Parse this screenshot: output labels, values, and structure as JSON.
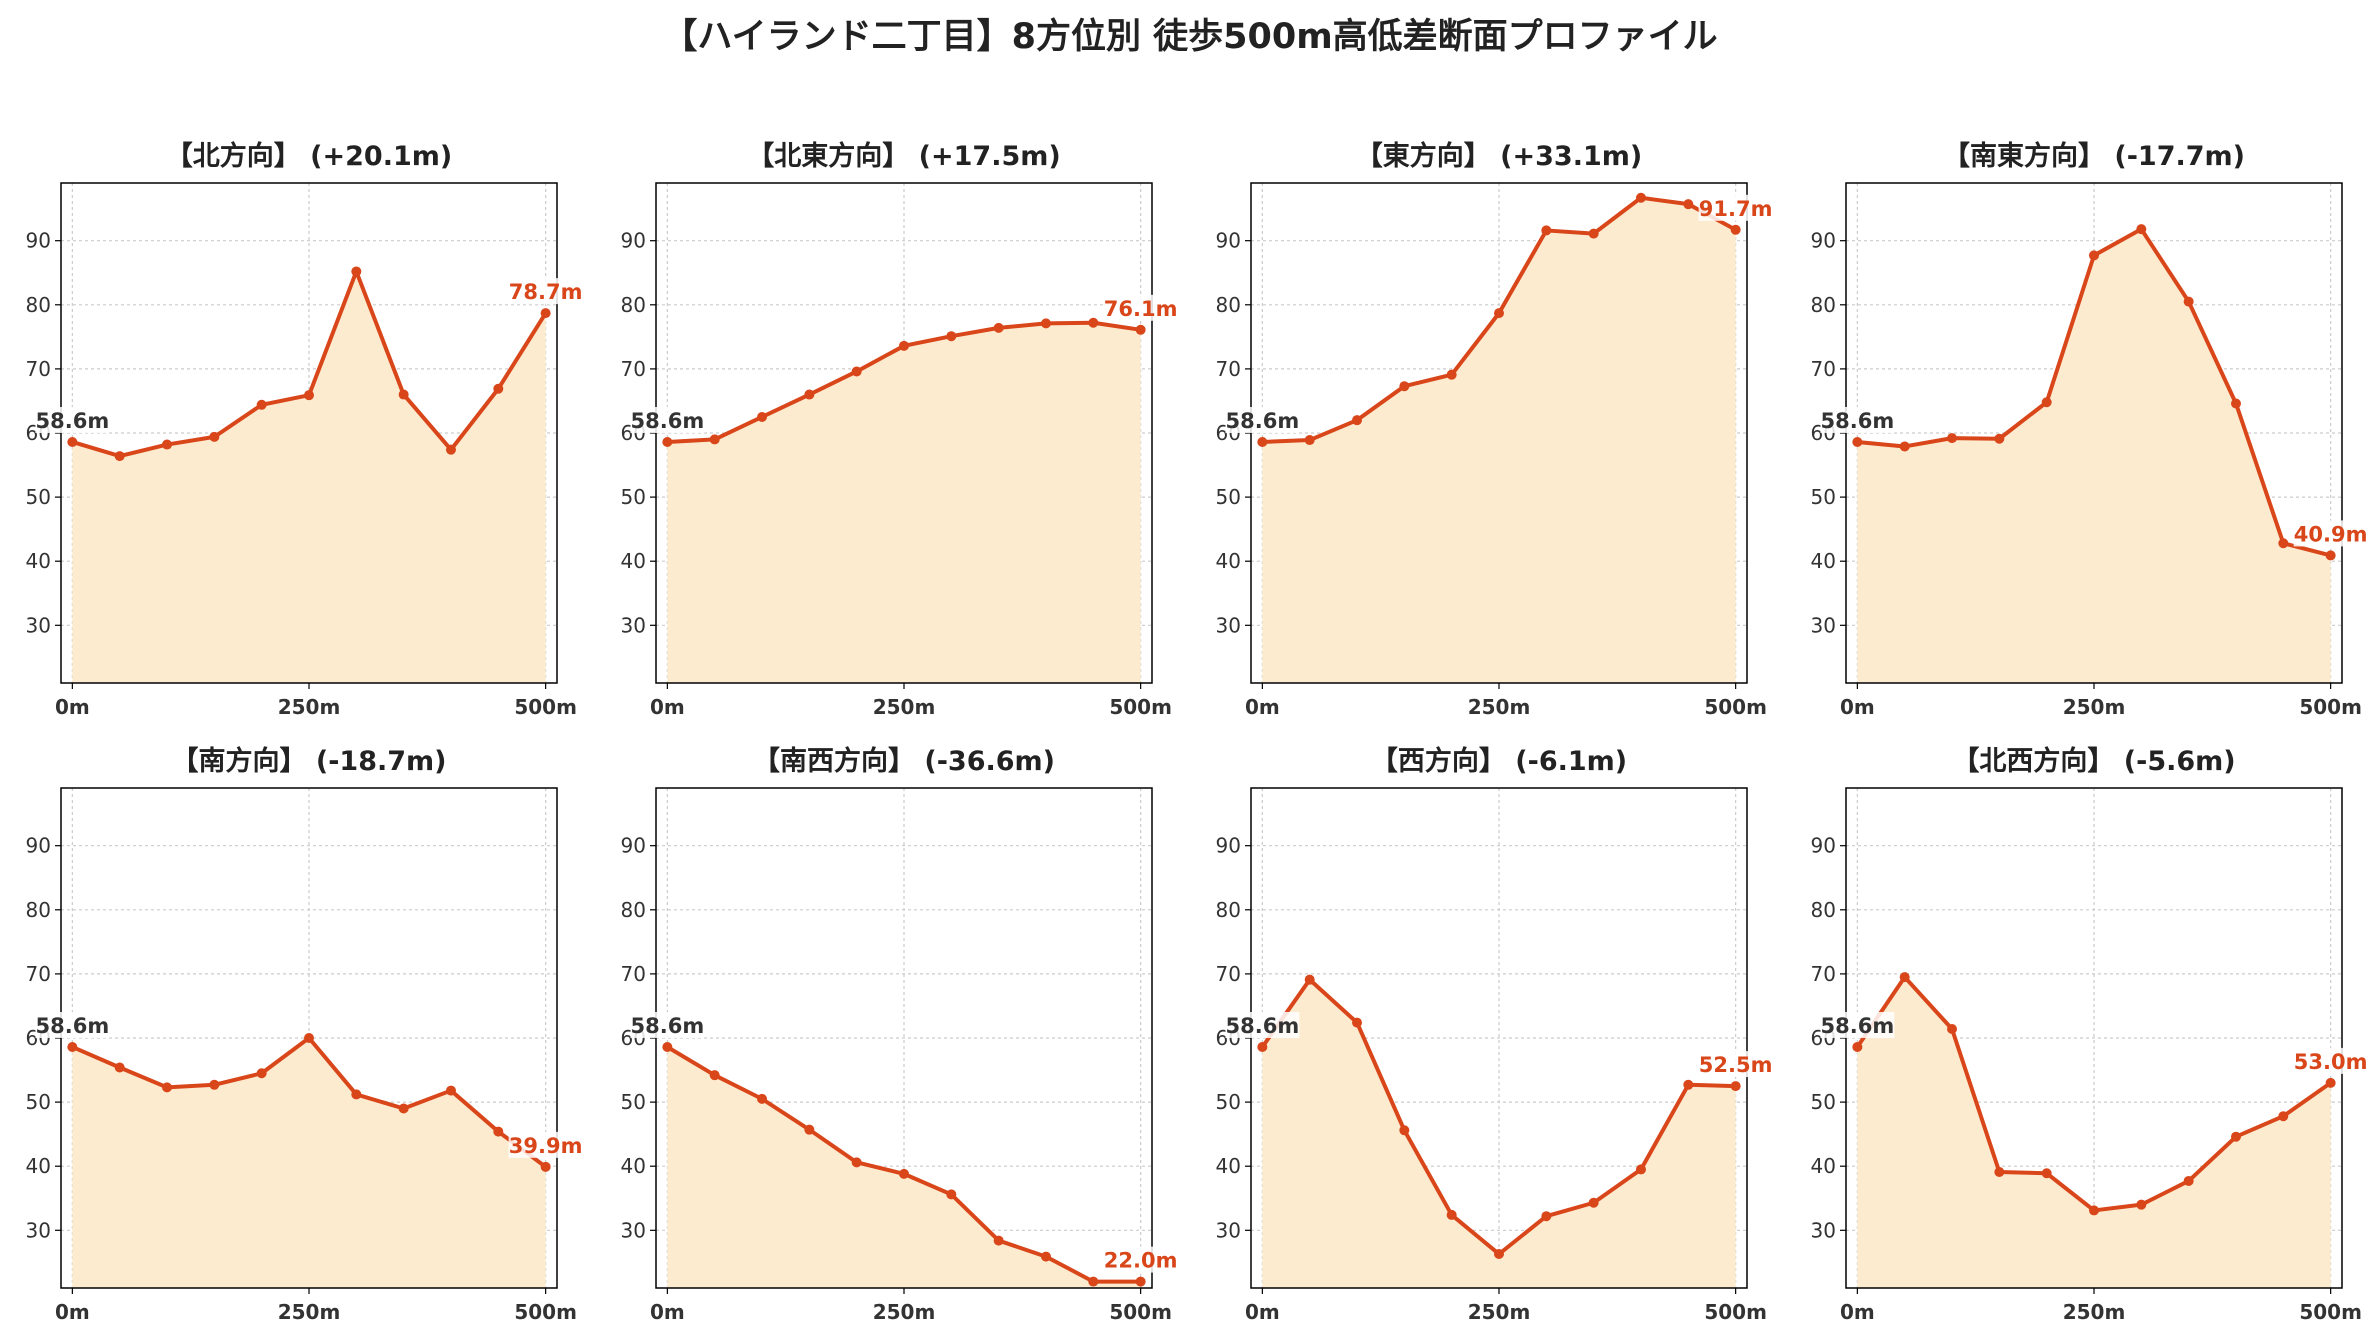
{
  "title": "【ハイランド二丁目】8方位別 徒歩500m高低差断面プロファイル",
  "colors": {
    "line": "#d9461a",
    "fill": "#fdebd0",
    "start_label": "#333333",
    "end_label": "#d9461a",
    "grid": "#cccccc"
  },
  "chart_data": [
    {
      "type": "area",
      "title": "【北方向】 (+20.1m)",
      "start_label": "58.6m",
      "end_label": "78.7m",
      "x": [
        0,
        50,
        100,
        150,
        200,
        250,
        300,
        350,
        400,
        450,
        500
      ],
      "y": [
        58.6,
        56.4,
        58.2,
        59.4,
        64.4,
        65.9,
        85.2,
        66.0,
        57.4,
        66.9,
        78.7
      ],
      "xticks": [
        "0m",
        "250m",
        "500m"
      ],
      "yticks": [
        30,
        40,
        50,
        60,
        70,
        80,
        90
      ],
      "ylim": [
        21,
        99
      ],
      "xlim": [
        -12,
        512
      ],
      "grid": true
    },
    {
      "type": "area",
      "title": "【北東方向】 (+17.5m)",
      "start_label": "58.6m",
      "end_label": "76.1m",
      "x": [
        0,
        50,
        100,
        150,
        200,
        250,
        300,
        350,
        400,
        450,
        500
      ],
      "y": [
        58.6,
        59.0,
        62.5,
        66.0,
        69.6,
        73.6,
        75.1,
        76.4,
        77.1,
        77.2,
        76.1
      ],
      "xticks": [
        "0m",
        "250m",
        "500m"
      ],
      "yticks": [
        30,
        40,
        50,
        60,
        70,
        80,
        90
      ],
      "ylim": [
        21,
        99
      ],
      "xlim": [
        -12,
        512
      ],
      "grid": true
    },
    {
      "type": "area",
      "title": "【東方向】 (+33.1m)",
      "start_label": "58.6m",
      "end_label": "91.7m",
      "x": [
        0,
        50,
        100,
        150,
        200,
        250,
        300,
        350,
        400,
        450,
        500
      ],
      "y": [
        58.6,
        58.9,
        62.0,
        67.3,
        69.1,
        78.7,
        91.6,
        91.1,
        96.7,
        95.7,
        91.7
      ],
      "xticks": [
        "0m",
        "250m",
        "500m"
      ],
      "yticks": [
        30,
        40,
        50,
        60,
        70,
        80,
        90
      ],
      "ylim": [
        21,
        99
      ],
      "xlim": [
        -12,
        512
      ],
      "grid": true
    },
    {
      "type": "area",
      "title": "【南東方向】 (-17.7m)",
      "start_label": "58.6m",
      "end_label": "40.9m",
      "x": [
        0,
        50,
        100,
        150,
        200,
        250,
        300,
        350,
        400,
        450,
        500
      ],
      "y": [
        58.6,
        57.9,
        59.2,
        59.1,
        64.8,
        87.7,
        91.8,
        80.5,
        64.6,
        42.8,
        40.9
      ],
      "xticks": [
        "0m",
        "250m",
        "500m"
      ],
      "yticks": [
        30,
        40,
        50,
        60,
        70,
        80,
        90
      ],
      "ylim": [
        21,
        99
      ],
      "xlim": [
        -12,
        512
      ],
      "grid": true
    },
    {
      "type": "area",
      "title": "【南方向】 (-18.7m)",
      "start_label": "58.6m",
      "end_label": "39.9m",
      "x": [
        0,
        50,
        100,
        150,
        200,
        250,
        300,
        350,
        400,
        450,
        500
      ],
      "y": [
        58.6,
        55.4,
        52.3,
        52.7,
        54.5,
        60.0,
        51.2,
        49.0,
        51.8,
        45.4,
        39.9
      ],
      "xticks": [
        "0m",
        "250m",
        "500m"
      ],
      "yticks": [
        30,
        40,
        50,
        60,
        70,
        80,
        90
      ],
      "ylim": [
        21,
        99
      ],
      "xlim": [
        -12,
        512
      ],
      "grid": true
    },
    {
      "type": "area",
      "title": "【南西方向】 (-36.6m)",
      "start_label": "58.6m",
      "end_label": "22.0m",
      "x": [
        0,
        50,
        100,
        150,
        200,
        250,
        300,
        350,
        400,
        450,
        500
      ],
      "y": [
        58.6,
        54.2,
        50.5,
        45.7,
        40.6,
        38.8,
        35.6,
        28.4,
        25.9,
        22.0,
        22.0
      ],
      "xticks": [
        "0m",
        "250m",
        "500m"
      ],
      "yticks": [
        30,
        40,
        50,
        60,
        70,
        80,
        90
      ],
      "ylim": [
        21,
        99
      ],
      "xlim": [
        -12,
        512
      ],
      "grid": true
    },
    {
      "type": "area",
      "title": "【西方向】 (-6.1m)",
      "start_label": "58.6m",
      "end_label": "52.5m",
      "x": [
        0,
        50,
        100,
        150,
        200,
        250,
        300,
        350,
        400,
        450,
        500
      ],
      "y": [
        58.6,
        69.1,
        62.4,
        45.6,
        32.4,
        26.3,
        32.2,
        34.3,
        39.5,
        52.7,
        52.5
      ],
      "xticks": [
        "0m",
        "250m",
        "500m"
      ],
      "yticks": [
        30,
        40,
        50,
        60,
        70,
        80,
        90
      ],
      "ylim": [
        21,
        99
      ],
      "xlim": [
        -12,
        512
      ],
      "grid": true
    },
    {
      "type": "area",
      "title": "【北西方向】 (-5.6m)",
      "start_label": "58.6m",
      "end_label": "53.0m",
      "x": [
        0,
        50,
        100,
        150,
        200,
        250,
        300,
        350,
        400,
        450,
        500
      ],
      "y": [
        58.6,
        69.5,
        61.4,
        39.1,
        38.9,
        33.1,
        34.0,
        37.7,
        44.6,
        47.8,
        53.0
      ],
      "xticks": [
        "0m",
        "250m",
        "500m"
      ],
      "yticks": [
        30,
        40,
        50,
        60,
        70,
        80,
        90
      ],
      "ylim": [
        21,
        99
      ],
      "xlim": [
        -12,
        512
      ],
      "grid": true
    }
  ]
}
